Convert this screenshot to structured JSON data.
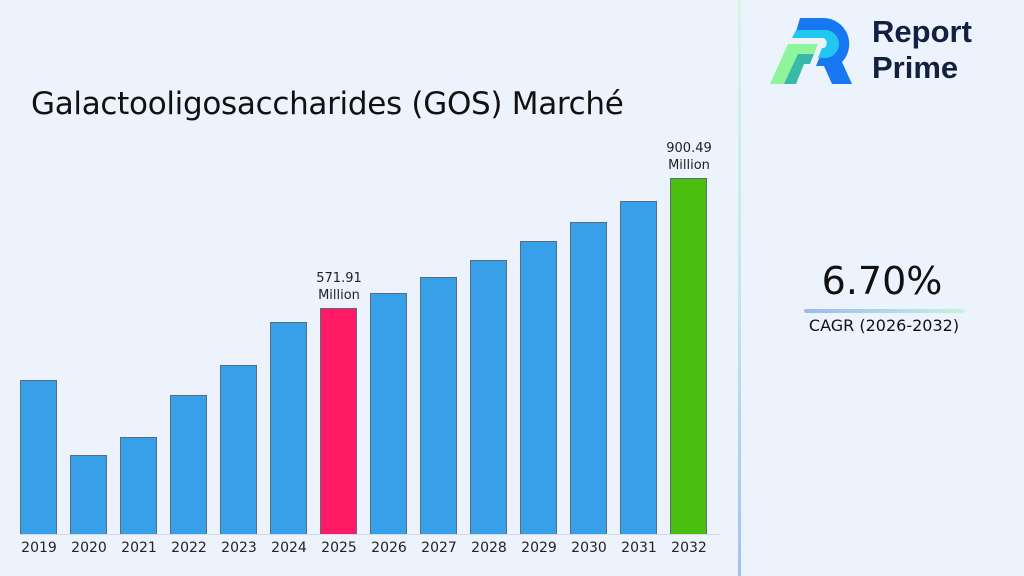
{
  "title": "Galactooligosaccharides (GOS) Marché",
  "brand": {
    "line1": "Report",
    "line2": "Prime"
  },
  "cagr": {
    "value": "6.70%",
    "label": "CAGR (2026-2032)"
  },
  "colors": {
    "default_bar": "#38a0e8",
    "highlight_2025": "#ff1a66",
    "highlight_2032": "#4bbf0f"
  },
  "labels": {
    "2025": {
      "value": "571.91",
      "unit": "Million"
    },
    "2032": {
      "value": "900.49",
      "unit": "Million"
    }
  },
  "chart_data": {
    "type": "bar",
    "title": "Galactooligosaccharides (GOS) Marché",
    "xlabel": "",
    "ylabel": "",
    "unit": "Million",
    "categories": [
      "2019",
      "2020",
      "2021",
      "2022",
      "2023",
      "2024",
      "2025",
      "2026",
      "2027",
      "2028",
      "2029",
      "2030",
      "2031",
      "2032"
    ],
    "values": [
      390,
      200,
      246,
      352,
      428,
      535,
      571.91,
      610,
      651,
      694,
      741,
      790,
      843,
      900.49
    ],
    "annotations": [
      {
        "x": "2025",
        "text": "571.91 Million"
      },
      {
        "x": "2032",
        "text": "900.49 Million"
      }
    ],
    "bar_colors": [
      "#38a0e8",
      "#38a0e8",
      "#38a0e8",
      "#38a0e8",
      "#38a0e8",
      "#38a0e8",
      "#ff1a66",
      "#38a0e8",
      "#38a0e8",
      "#38a0e8",
      "#38a0e8",
      "#38a0e8",
      "#38a0e8",
      "#4bbf0f"
    ],
    "grid": false,
    "legend": "none",
    "ylim": [
      0,
      900.49
    ]
  }
}
